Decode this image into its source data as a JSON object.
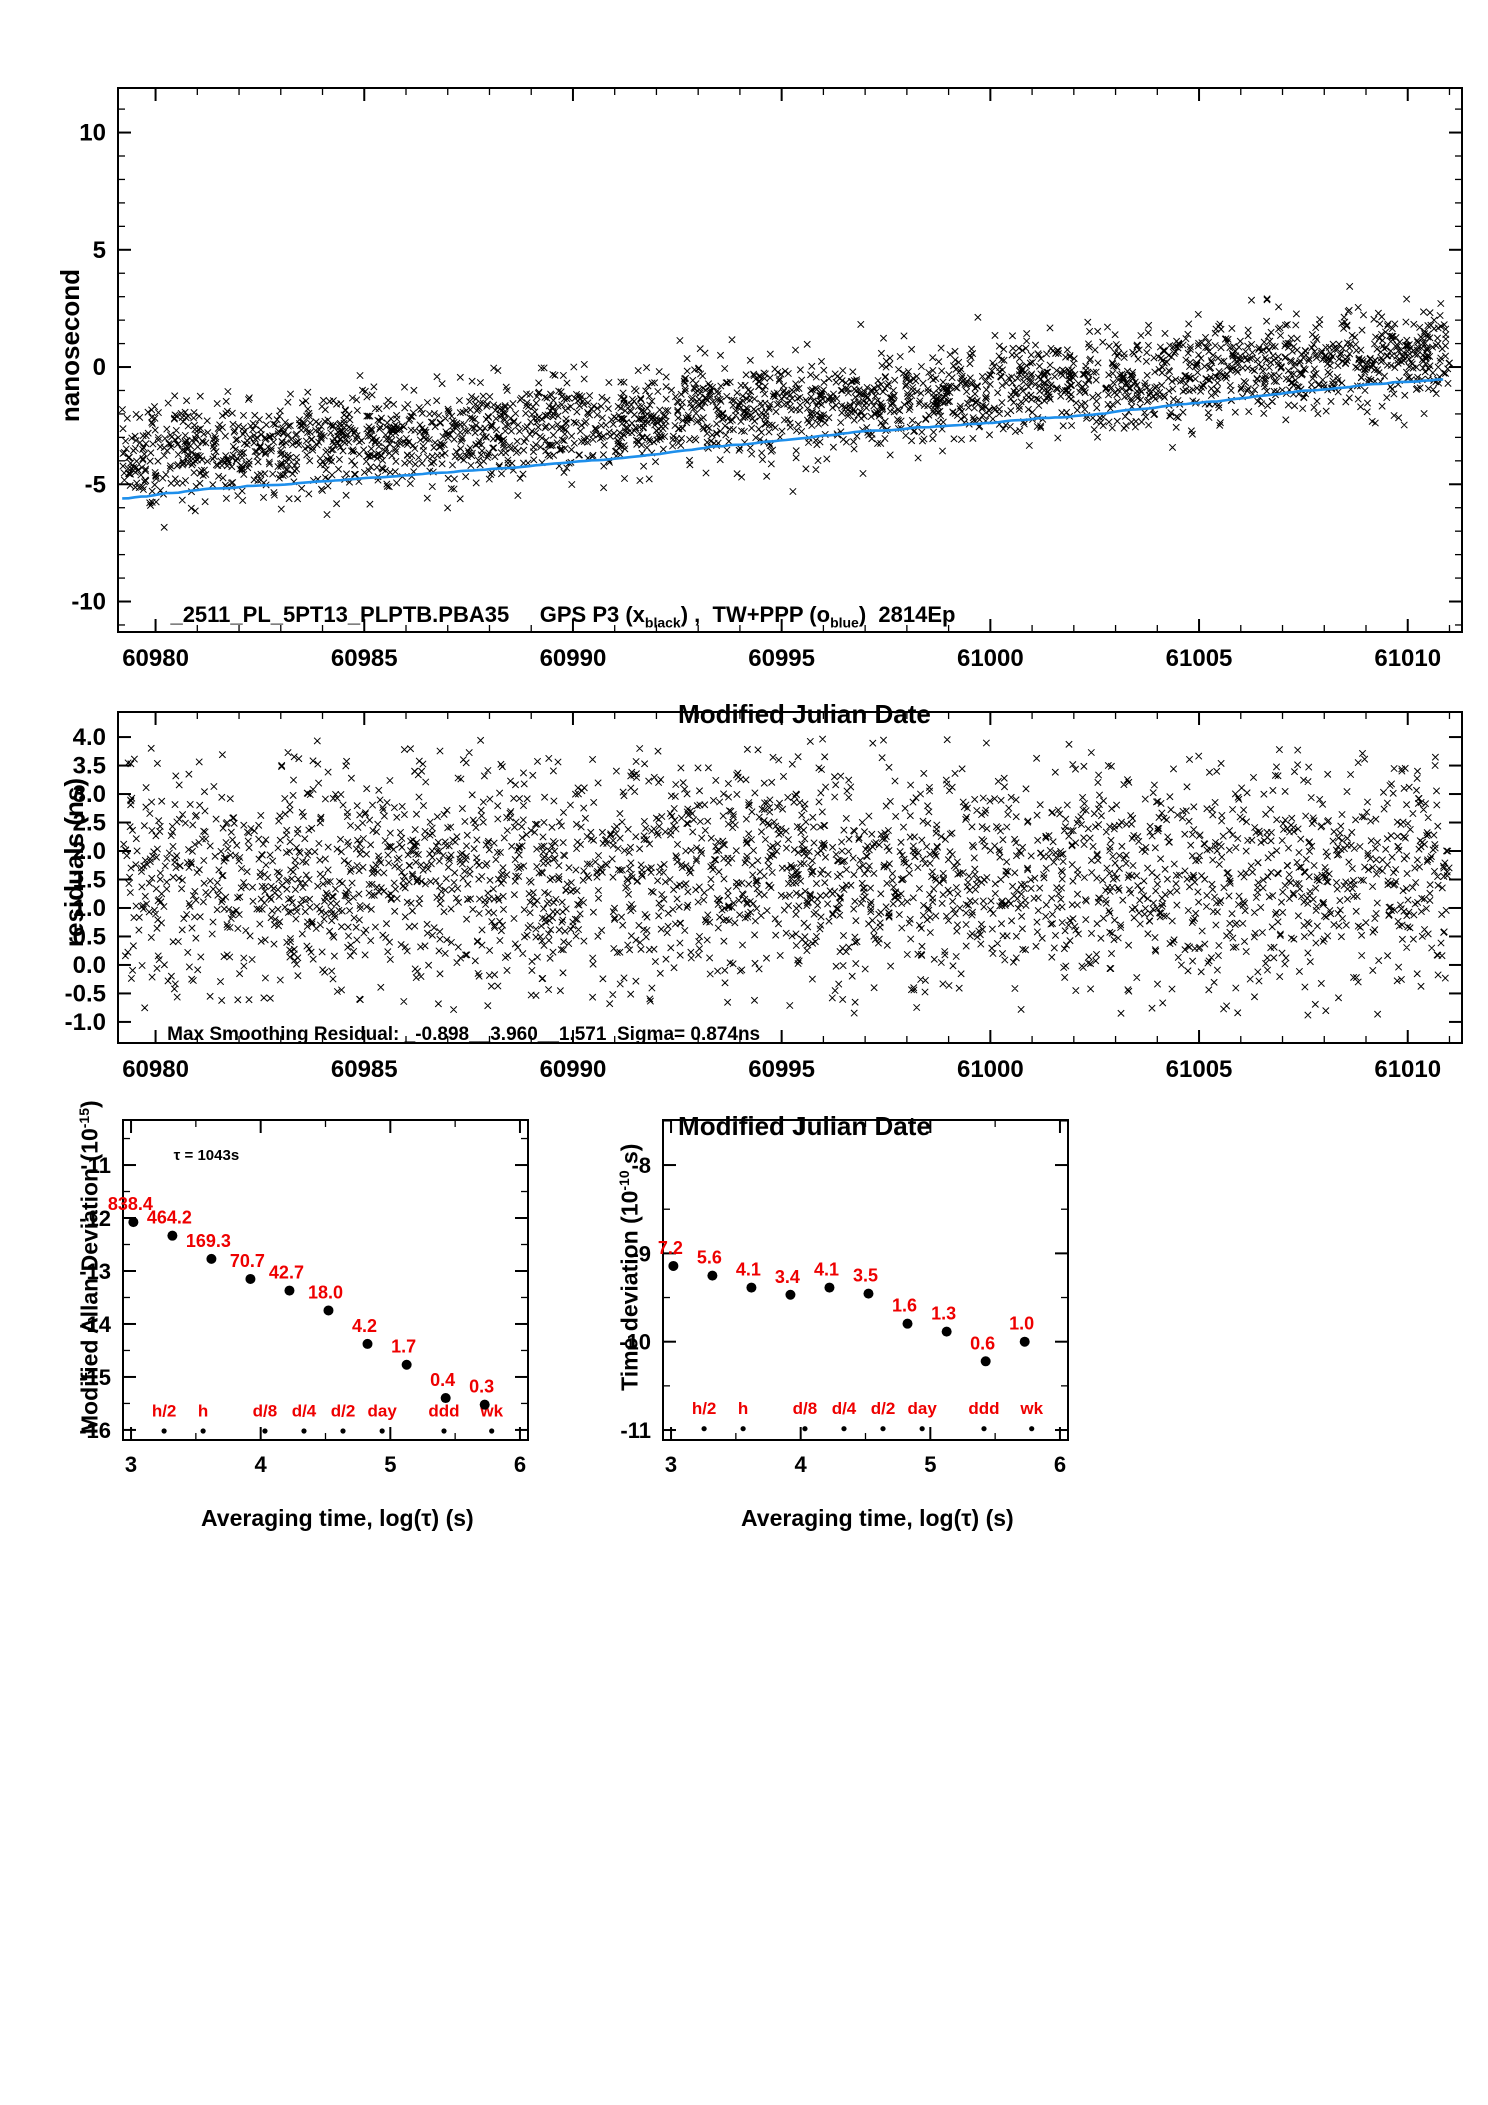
{
  "page": {
    "background": "#ffffff",
    "axis_color": "#000000",
    "accent_red": "#EE0000",
    "accent_blue": "#1E8FEB"
  },
  "chart_data": [
    {
      "id": "phase",
      "type": "scatter",
      "xlabel": "Modified Julian Date",
      "ylabel": "nanosecond",
      "xlim": [
        60979.1,
        61011.3
      ],
      "ylim": [
        -11.3,
        11.9
      ],
      "xtick_values": [
        60980,
        60985,
        60990,
        60995,
        61000,
        61005,
        61010
      ],
      "xtick_labels": [
        "60980",
        "60985",
        "60990",
        "60995",
        "61000",
        "61005",
        "61010"
      ],
      "ytick_values": [
        -10,
        -5,
        0,
        5,
        10
      ],
      "ytick_labels": [
        "-10",
        "-5",
        "0",
        "5",
        "10"
      ],
      "xminor_step": 1,
      "yminor_step": 1,
      "series": [
        {
          "name": "GPS P3",
          "marker": "x",
          "color": "#000000",
          "n_points": 2814,
          "seed": 20814,
          "x_range": [
            60979.2,
            61011.0
          ],
          "trend": {
            "x0": 60979.2,
            "y0": -3.95,
            "x1": 61011.0,
            "y1": 0.55
          },
          "sigma": 1.05
        },
        {
          "name": "TW+PPP",
          "marker": "line",
          "color": "#1E8FEB",
          "seed": 77,
          "x_range": [
            60979.2,
            61011.0
          ],
          "trend": {
            "x0": 60979.2,
            "y0": -5.6,
            "x1": 61011.0,
            "y1": -0.5
          },
          "wiggle": 0.13
        }
      ],
      "caption": {
        "text_main": "_2511_PL_5PT13_PLPTB.PBA35",
        "text_gps": "     GPS P3 (x",
        "sub_black": "black",
        "text_mid": ") ,  TW+PPP (o",
        "sub_blue": "blue",
        "text_end": ")  2814Ep"
      }
    },
    {
      "id": "residuals",
      "type": "scatter",
      "xlabel": "Modified Julian Date",
      "ylabel": "residuals (ns)",
      "xlim": [
        60979.1,
        61011.3
      ],
      "ylim": [
        -1.37,
        4.44
      ],
      "xtick_values": [
        60980,
        60985,
        60990,
        60995,
        61000,
        61005,
        61010
      ],
      "xtick_labels": [
        "60980",
        "60985",
        "60990",
        "60995",
        "61000",
        "61005",
        "61010"
      ],
      "ytick_values": [
        4.0,
        3.5,
        3.0,
        2.5,
        2.0,
        1.5,
        1.0,
        0.5,
        0.0,
        -0.5,
        -1.0
      ],
      "ytick_labels": [
        "4.0",
        "3.5",
        "3.0",
        "2.5",
        "2.0",
        "1.5",
        "1.0",
        "0.5",
        "0.0",
        "-0.5",
        "-1.0"
      ],
      "xminor_step": 1,
      "series": [
        {
          "name": "smoothing residuals",
          "marker": "x",
          "color": "#000000",
          "n_points": 2814,
          "seed": 5150,
          "x_range": [
            60979.2,
            61011.0
          ],
          "mean": 1.55,
          "sigma": 1.02,
          "clip": [
            -0.92,
            3.97
          ]
        }
      ],
      "caption": {
        "text": "Max Smoothing Residual: _-0.898__3.960__1.571  Sigma= 0.874ns"
      }
    },
    {
      "id": "mdev",
      "type": "scatter",
      "xlabel": "Averaging time, log(τ) (s)",
      "ylabel_parts": {
        "pre": "Modified Allan Deviation (10",
        "sup": "-15",
        "post": ")"
      },
      "xlim": [
        2.938,
        6.062
      ],
      "ylim": [
        -16.19,
        -10.15
      ],
      "xtick_values": [
        3,
        4,
        5,
        6
      ],
      "xtick_labels": [
        "3",
        "4",
        "5",
        "6"
      ],
      "ytick_values": [
        -11,
        -12,
        -13,
        -14,
        -15,
        -16
      ],
      "ytick_labels": [
        "-11",
        "-12",
        "-13",
        "-14",
        "-15",
        "-16"
      ],
      "xminor_step": 0.5,
      "yminor_step": 0.5,
      "annotation": "τ = 1043s",
      "points": {
        "exp": -15,
        "log_tau": [
          3.018,
          3.319,
          3.62,
          3.921,
          4.222,
          4.523,
          4.824,
          5.126,
          5.427,
          5.728
        ],
        "values": [
          838.4,
          464.2,
          169.3,
          70.7,
          42.7,
          18.0,
          4.2,
          1.7,
          0.4,
          0.3
        ],
        "labels": [
          "838.4",
          "464.2",
          "169.3",
          "70.7",
          "42.7",
          "18.0",
          "4.2",
          "1.7",
          "0.4",
          "0.3"
        ]
      },
      "ref_marks": {
        "labels": [
          "h/2",
          "h",
          "d/8",
          "d/4",
          "d/2",
          "day",
          "ddd",
          "wk"
        ],
        "log_tau": [
          3.255,
          3.556,
          4.033,
          4.334,
          4.635,
          4.937,
          5.414,
          5.782
        ],
        "label_y": -15.75,
        "dot_y": -16.02
      }
    },
    {
      "id": "tdev",
      "type": "scatter",
      "xlabel": "Averaging time, log(τ) (s)",
      "ylabel_parts": {
        "pre": "Time deviation (10",
        "sup": "-10",
        "post": " s)"
      },
      "xlim": [
        2.938,
        6.062
      ],
      "ylim": [
        -11.113,
        -7.49
      ],
      "xtick_values": [
        3,
        4,
        5,
        6
      ],
      "xtick_labels": [
        "3",
        "4",
        "5",
        "6"
      ],
      "ytick_values": [
        -8,
        -9,
        -10,
        -11
      ],
      "ytick_labels": [
        "-8",
        "-9",
        "-10",
        "-11"
      ],
      "xminor_step": 0.5,
      "yminor_step": 0.5,
      "points": {
        "exp": -10,
        "log_tau": [
          3.018,
          3.319,
          3.62,
          3.921,
          4.222,
          4.523,
          4.824,
          5.126,
          5.427,
          5.728
        ],
        "values": [
          7.2,
          5.6,
          4.1,
          3.4,
          4.1,
          3.5,
          1.6,
          1.3,
          0.6,
          1.0
        ],
        "labels": [
          "7.2",
          "5.6",
          "4.1",
          "3.4",
          "4.1",
          "3.5",
          "1.6",
          "1.3",
          "0.6",
          "1.0"
        ]
      },
      "ref_marks": {
        "labels": [
          "h/2",
          "h",
          "d/8",
          "d/4",
          "d/2",
          "day",
          "ddd",
          "wk"
        ],
        "log_tau": [
          3.255,
          3.556,
          4.033,
          4.334,
          4.635,
          4.937,
          5.414,
          5.782
        ],
        "label_y": -10.82,
        "dot_y": -10.985
      }
    }
  ]
}
